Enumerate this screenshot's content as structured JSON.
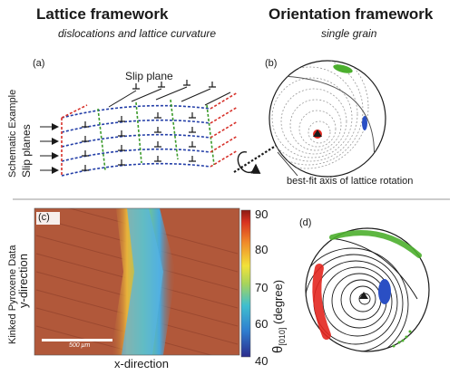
{
  "headers": {
    "lattice_title": "Lattice framework",
    "lattice_subtitle": "dislocations and lattice curvature",
    "orientation_title": "Orientation framework",
    "orientation_subtitle": "single grain"
  },
  "side_labels": {
    "top": "Schematic Example",
    "bottom": "Kinked Pyroxene Data"
  },
  "panels": {
    "a": {
      "label": "(a)",
      "slip_plane_label": "Slip plane",
      "slip_planes_label": "Slip planes"
    },
    "b": {
      "label": "(b)",
      "axis_label": "best-fit axis of lattice rotation"
    },
    "c": {
      "label": "(c)",
      "y_axis_label": "y-direction",
      "x_axis_label": "x-direction",
      "scale_bar_label": "500 μm",
      "colorbar": {
        "ticks": [
          "90",
          "80",
          "70",
          "60",
          "40"
        ],
        "label_main": "θ",
        "label_sub": "[010]",
        "label_unit": "(degree)"
      }
    },
    "d": {
      "label": "(d)"
    }
  },
  "colors": {
    "green": "#4caf2e",
    "blue": "#2a4fc4",
    "red": "#e3261f",
    "dislocation_line_blue": "#243fa8",
    "dislocation_line_green": "#3b9a2a",
    "dislocation_line_red": "#d7322b",
    "grain_background": "#b1583a"
  }
}
